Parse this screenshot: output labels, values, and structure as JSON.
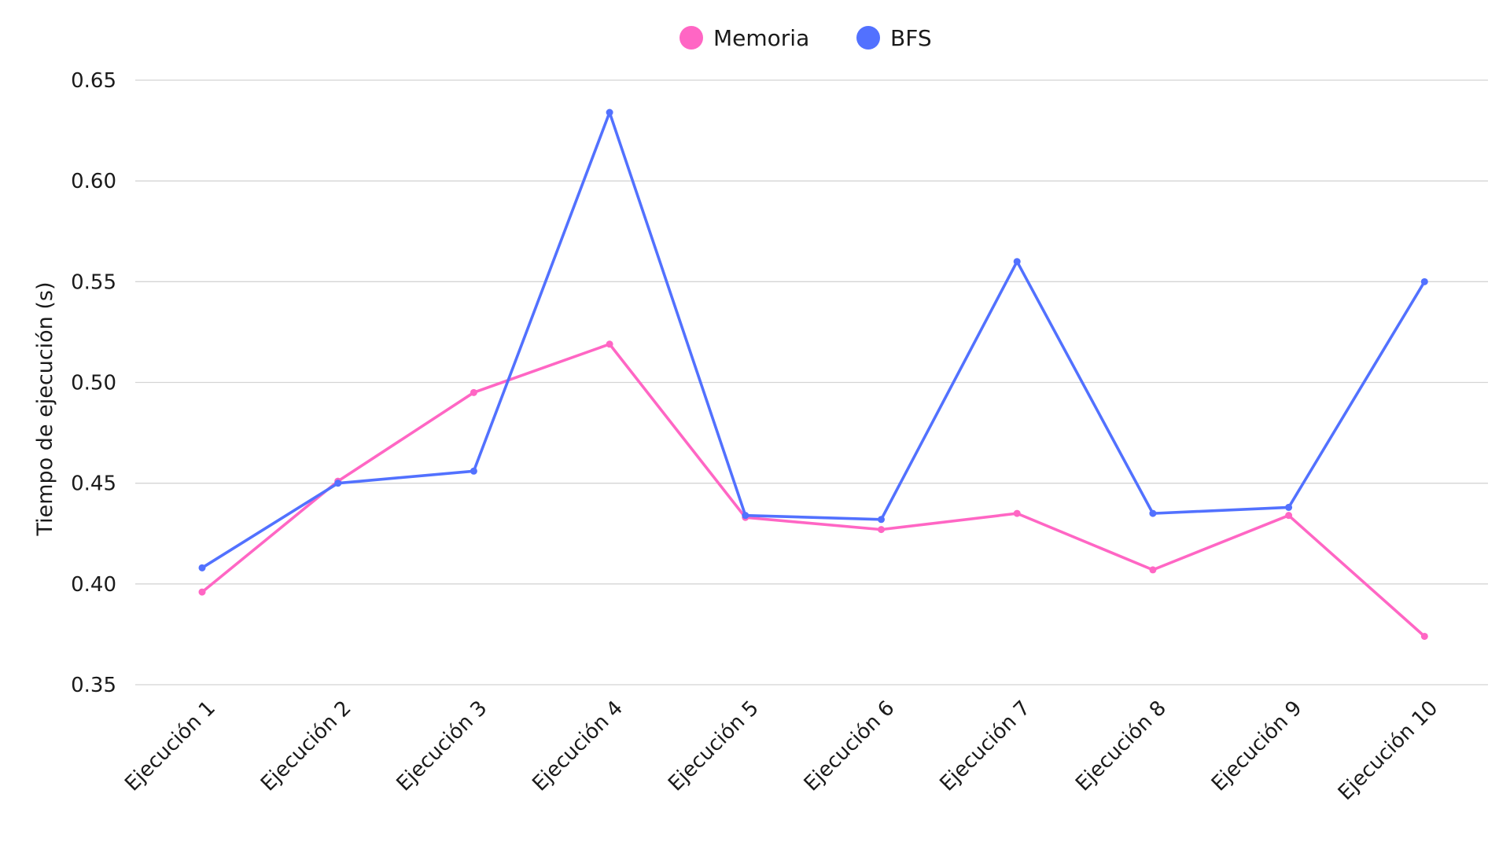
{
  "chart_data": {
    "type": "line",
    "ylabel": "Tiempo de ejecución (s)",
    "xlabel": "",
    "ylim": [
      0.35,
      0.65
    ],
    "yticks": [
      "0.35",
      "0.40",
      "0.45",
      "0.50",
      "0.55",
      "0.60",
      "0.65"
    ],
    "grid": true,
    "legend_position": "top-center",
    "categories": [
      "Ejecución 1",
      "Ejecución 2",
      "Ejecución 3",
      "Ejecución 4",
      "Ejecución 5",
      "Ejecución 6",
      "Ejecución 7",
      "Ejecución 8",
      "Ejecución 9",
      "Ejecución 10"
    ],
    "series": [
      {
        "name": "Memoria",
        "color": "#ff66c4",
        "values": [
          0.396,
          0.451,
          0.495,
          0.519,
          0.433,
          0.427,
          0.435,
          0.407,
          0.434,
          0.374
        ]
      },
      {
        "name": "BFS",
        "color": "#5271ff",
        "values": [
          0.408,
          0.45,
          0.456,
          0.634,
          0.434,
          0.432,
          0.56,
          0.435,
          0.438,
          0.55
        ]
      }
    ]
  }
}
